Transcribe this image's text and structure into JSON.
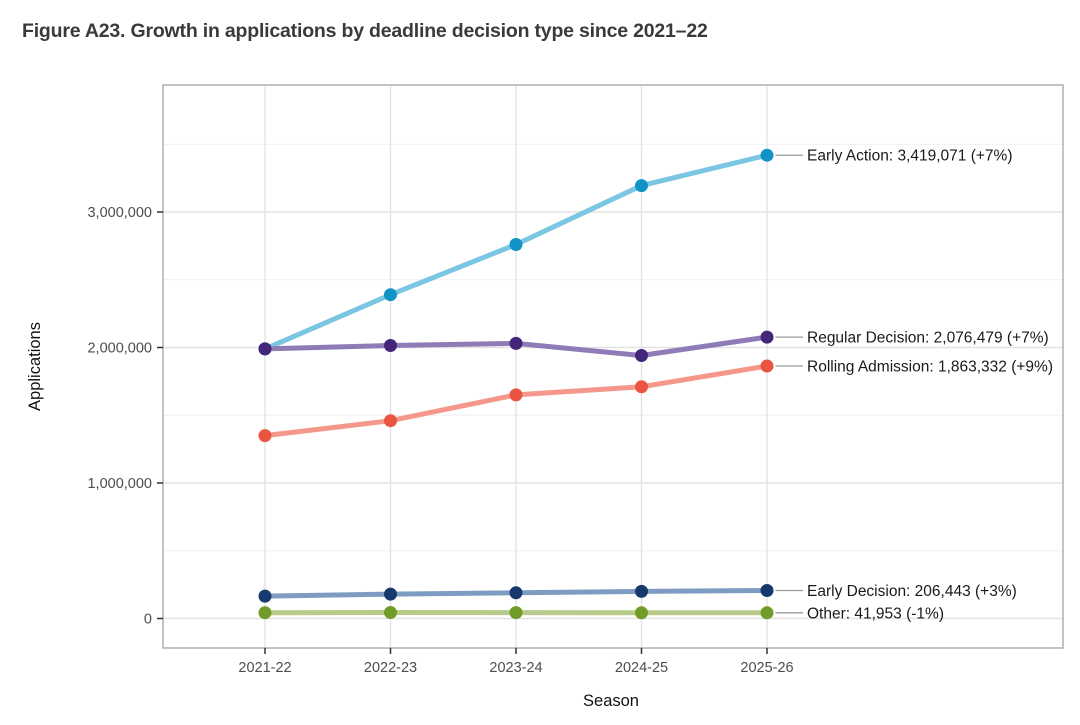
{
  "figure": {
    "title": "Figure A23. Growth in applications by deadline decision type since 2021–22"
  },
  "chart_data": {
    "type": "line",
    "title": "Figure A23. Growth in applications by deadline decision type since 2021–22",
    "xlabel": "Season",
    "ylabel": "Applications",
    "categories": [
      "2021-22",
      "2022-23",
      "2023-24",
      "2024-25",
      "2025-26"
    ],
    "y_axis": {
      "range": [
        0,
        3900000
      ],
      "major_ticks": [
        {
          "value": 0,
          "label": "0"
        },
        {
          "value": 1000000,
          "label": "1,000,000"
        },
        {
          "value": 2000000,
          "label": "2,000,000"
        },
        {
          "value": 3000000,
          "label": "3,000,000"
        }
      ],
      "minor_ticks": [
        500000,
        1500000,
        2500000,
        3500000
      ]
    },
    "grid": true,
    "legend_position": "inline-right-annotations",
    "series": [
      {
        "name": "Early Action",
        "values": [
          1990000,
          2390000,
          2760000,
          3195000,
          3419071
        ],
        "final_value_label": "3,419,071",
        "change_label": "+7%",
        "annotation": "Early Action: 3,419,071 (+7%)",
        "line_color": "#7bc6e2",
        "marker_color": "#1094c6"
      },
      {
        "name": "Regular Decision",
        "values": [
          1990000,
          2015000,
          2030000,
          1941000,
          2076479
        ],
        "final_value_label": "2,076,479",
        "change_label": "+7%",
        "annotation": "Regular Decision: 2,076,479 (+7%)",
        "line_color": "#8f7cb6",
        "marker_color": "#432579"
      },
      {
        "name": "Rolling Admission",
        "values": [
          1350000,
          1460000,
          1650000,
          1710000,
          1863332
        ],
        "final_value_label": "1,863,332",
        "change_label": "+9%",
        "annotation": "Rolling Admission: 1,863,332 (+9%)",
        "line_color": "#f5988b",
        "marker_color": "#eb5441"
      },
      {
        "name": "Early Decision",
        "values": [
          165000,
          180000,
          190000,
          200000,
          206443
        ],
        "final_value_label": "206,443",
        "change_label": "+3%",
        "annotation": "Early Decision: 206,443 (+3%)",
        "line_color": "#7e9cc2",
        "marker_color": "#16396e"
      },
      {
        "name": "Other",
        "values": [
          43000,
          44000,
          43500,
          42400,
          41953
        ],
        "final_value_label": "41,953",
        "change_label": "-1%",
        "annotation": "Other: 41,953 (-1%)",
        "line_color": "#b7cb8b",
        "marker_color": "#719c28"
      }
    ],
    "style_colors": {
      "grid_major": "#e3e3e3",
      "grid_minor": "#efefef",
      "panel_border": "#a3a3a3",
      "tick_mark": "#333333",
      "tick_label": "#4d4d4d",
      "axis_title": "#111111",
      "annotation_text": "#1a1a1a",
      "annotation_connector": "#999999",
      "title_text": "#3a3a3a"
    }
  }
}
